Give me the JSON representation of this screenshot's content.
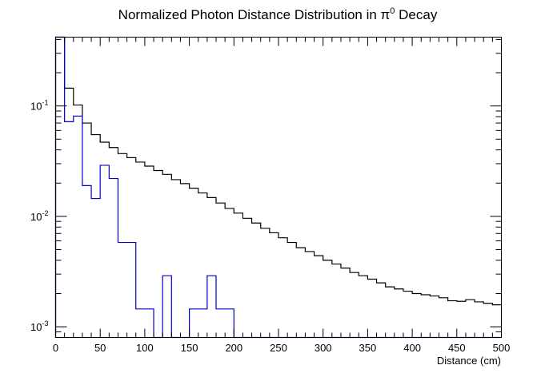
{
  "chart_data": {
    "type": "step",
    "title_prefix": "Normalized Photon Distance Distribution in π",
    "title_sup": "0",
    "title_suffix": " Decay",
    "xlabel": "Distance (cm)",
    "ylabel": "",
    "xlim": [
      0,
      500
    ],
    "ylim": [
      0.0008,
      0.42
    ],
    "yscale": "log",
    "bin_width": 10,
    "x_ticks": [
      "0",
      "50",
      "100",
      "150",
      "200",
      "250",
      "300",
      "350",
      "400",
      "450",
      "500"
    ],
    "y_ticks": [
      {
        "base": "10",
        "exp": "-1"
      },
      {
        "base": "10",
        "exp": "-2"
      },
      {
        "base": "10",
        "exp": "-3"
      }
    ],
    "series": [
      {
        "color": "#000000",
        "bin_edges": [
          0,
          10,
          20,
          30,
          40,
          50,
          60,
          70,
          80,
          90,
          100,
          110,
          120,
          130,
          140,
          150,
          160,
          170,
          180,
          190,
          200,
          210,
          220,
          230,
          240,
          250,
          260,
          270,
          280,
          290,
          300,
          310,
          320,
          330,
          340,
          350,
          360,
          370,
          380,
          390,
          400,
          410,
          420,
          430,
          440,
          450,
          460,
          470,
          480,
          490,
          500
        ],
        "values": [
          0.42,
          0.145,
          0.102,
          0.07,
          0.055,
          0.047,
          0.042,
          0.037,
          0.034,
          0.031,
          0.0285,
          0.026,
          0.024,
          0.0215,
          0.0198,
          0.018,
          0.0163,
          0.0148,
          0.0132,
          0.0118,
          0.0107,
          0.0096,
          0.0087,
          0.0078,
          0.0071,
          0.0064,
          0.0058,
          0.0052,
          0.0048,
          0.0044,
          0.004,
          0.0037,
          0.0034,
          0.0031,
          0.0029,
          0.0027,
          0.0025,
          0.0023,
          0.0022,
          0.0021,
          0.002,
          0.00195,
          0.0019,
          0.00183,
          0.00172,
          0.0017,
          0.00176,
          0.00168,
          0.00163,
          0.00158
        ]
      },
      {
        "color": "#0000cc",
        "bin_edges": [
          0,
          10,
          20,
          30,
          40,
          50,
          60,
          70,
          80,
          90,
          100,
          110,
          120,
          130,
          140,
          150,
          160,
          170,
          180,
          190,
          200,
          210,
          220,
          230,
          240,
          250,
          260,
          270,
          280,
          290,
          300,
          310,
          320,
          330,
          340,
          350,
          360,
          370,
          380,
          390,
          400,
          410,
          420,
          430,
          440,
          450,
          460,
          470,
          480,
          490,
          500
        ],
        "values": [
          0.42,
          0.072,
          0.081,
          0.019,
          0.0145,
          0.029,
          0.022,
          0.0058,
          0.0058,
          0.00145,
          0.00145,
          0,
          0.0029,
          0,
          0,
          0.00145,
          0.00145,
          0.0029,
          0.00145,
          0.00145,
          0,
          0,
          0,
          0,
          0,
          0,
          0,
          0,
          0,
          0,
          0,
          0,
          0,
          0,
          0,
          0,
          0,
          0,
          0,
          0,
          0,
          0,
          0,
          0,
          0,
          0,
          0,
          0,
          0,
          0
        ]
      }
    ],
    "grid": false
  }
}
